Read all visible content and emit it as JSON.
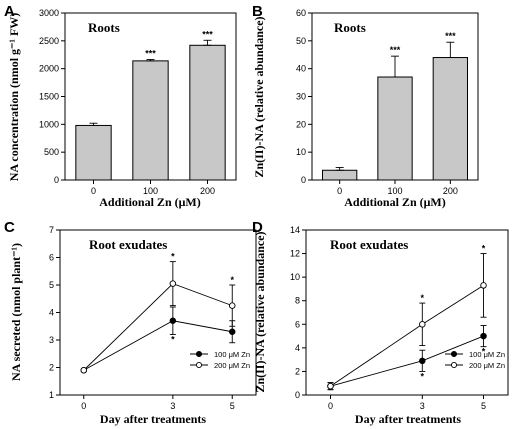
{
  "chart_data": [
    {
      "panel": "A",
      "type": "bar",
      "title": "Roots",
      "xlabel": "Additional Zn (μM)",
      "ylabel": "NA concentration (nmol g⁻¹ FW)",
      "categories": [
        "0",
        "100",
        "200"
      ],
      "values": [
        980,
        2140,
        2420
      ],
      "errors": [
        40,
        25,
        90
      ],
      "significance": [
        "",
        "***",
        "***"
      ],
      "ylim": [
        0,
        3000
      ],
      "yticks": [
        "0",
        "500",
        "1000",
        "1500",
        "2000",
        "2500",
        "3000"
      ]
    },
    {
      "panel": "B",
      "type": "bar",
      "title": "Roots",
      "xlabel": "Additional Zn (μM)",
      "ylabel": "Zn(II)-NA (relative abundance)",
      "categories": [
        "0",
        "100",
        "200"
      ],
      "values": [
        3.5,
        37,
        44
      ],
      "errors": [
        1,
        7.5,
        5.5
      ],
      "significance": [
        "",
        "***",
        "***"
      ],
      "ylim": [
        0,
        60
      ],
      "yticks": [
        "0",
        "10",
        "20",
        "30",
        "40",
        "50",
        "60"
      ]
    },
    {
      "panel": "C",
      "type": "line",
      "title": "Root exudates",
      "xlabel": "Day after treatments",
      "ylabel": "NA secreted (nmol plant⁻¹)",
      "x": [
        0,
        3,
        5
      ],
      "xticks": [
        "0",
        "3",
        "5"
      ],
      "ylim": [
        1,
        7
      ],
      "yticks": [
        "1",
        "2",
        "3",
        "4",
        "5",
        "6",
        "7"
      ],
      "legend_position": "bottom-right",
      "series": [
        {
          "name": "100 μM Zn",
          "marker": "filled",
          "values": [
            1.9,
            3.7,
            3.3
          ],
          "errors": [
            0,
            0.5,
            0.4
          ],
          "significance": [
            "",
            "*",
            ""
          ]
        },
        {
          "name": "200 μM Zn",
          "marker": "open",
          "values": [
            1.9,
            5.05,
            4.25
          ],
          "errors": [
            0,
            0.8,
            0.75
          ],
          "significance": [
            "",
            "*",
            "*"
          ]
        }
      ]
    },
    {
      "panel": "D",
      "type": "line",
      "title": "Root exudates",
      "xlabel": "Day after treatments",
      "ylabel": "Zn(II)-NA (relative abundance)",
      "x": [
        0,
        3,
        5
      ],
      "xticks": [
        "0",
        "3",
        "5"
      ],
      "ylim": [
        0,
        14
      ],
      "yticks": [
        "0",
        "2",
        "4",
        "6",
        "8",
        "10",
        "12",
        "14"
      ],
      "legend_position": "bottom-right",
      "series": [
        {
          "name": "100 μM Zn",
          "marker": "filled",
          "values": [
            0.75,
            2.9,
            5.0
          ],
          "errors": [
            0.3,
            0.9,
            0.9
          ],
          "significance": [
            "",
            "*",
            "*"
          ]
        },
        {
          "name": "200 μM Zn",
          "marker": "open",
          "values": [
            0.75,
            6.0,
            9.3
          ],
          "errors": [
            0.3,
            1.8,
            2.7
          ],
          "significance": [
            "",
            "*",
            "*"
          ]
        }
      ]
    }
  ]
}
